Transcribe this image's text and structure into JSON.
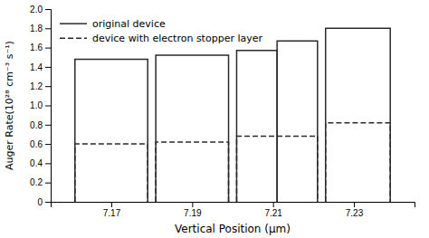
{
  "chart_data": {
    "type": "bar",
    "xlabel": "Vertical Position (μm)",
    "ylabel": "Auger Rate(10²⁸ cm⁻³ s⁻¹)",
    "xlim": [
      7.155,
      7.245
    ],
    "ylim": [
      0,
      2.0
    ],
    "xticks": [
      7.17,
      7.19,
      7.21,
      7.23
    ],
    "yticks": [
      0,
      0.2,
      0.4,
      0.6,
      0.8,
      {
        "value": 1.0,
        "label": "1.0"
      },
      1.2,
      1.4,
      1.6,
      1.8,
      {
        "value": 2.0,
        "label": "2.0"
      }
    ],
    "legend": "upper left",
    "grid": false,
    "series": [
      {
        "name": "original device",
        "color": "#2a2a2a",
        "line_style": "solid",
        "x_left": [
          7.161,
          7.181,
          7.201,
          7.211,
          7.223
        ],
        "x_right": [
          7.179,
          7.199,
          7.211,
          7.221,
          7.239
        ],
        "values": [
          1.48,
          1.52,
          1.57,
          1.67,
          1.8
        ]
      },
      {
        "name": "device with electron stopper layer",
        "color": "#2a2a2a",
        "line_style": "dashed",
        "x_left": [
          7.161,
          7.181,
          7.201,
          7.223
        ],
        "x_right": [
          7.179,
          7.199,
          7.221,
          7.239
        ],
        "values": [
          0.6,
          0.62,
          0.68,
          0.82
        ]
      }
    ]
  }
}
